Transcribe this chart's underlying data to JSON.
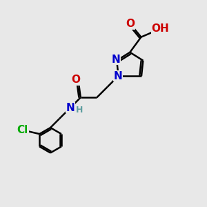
{
  "background_color": "#e8e8e8",
  "bond_color": "#000000",
  "N_color": "#0000cc",
  "O_color": "#cc0000",
  "Cl_color": "#00aa00",
  "H_color": "#5f9ea0",
  "line_width": 1.8,
  "font_size_atoms": 11,
  "font_size_small": 9,
  "xlim": [
    0,
    10
  ],
  "ylim": [
    0,
    10
  ]
}
